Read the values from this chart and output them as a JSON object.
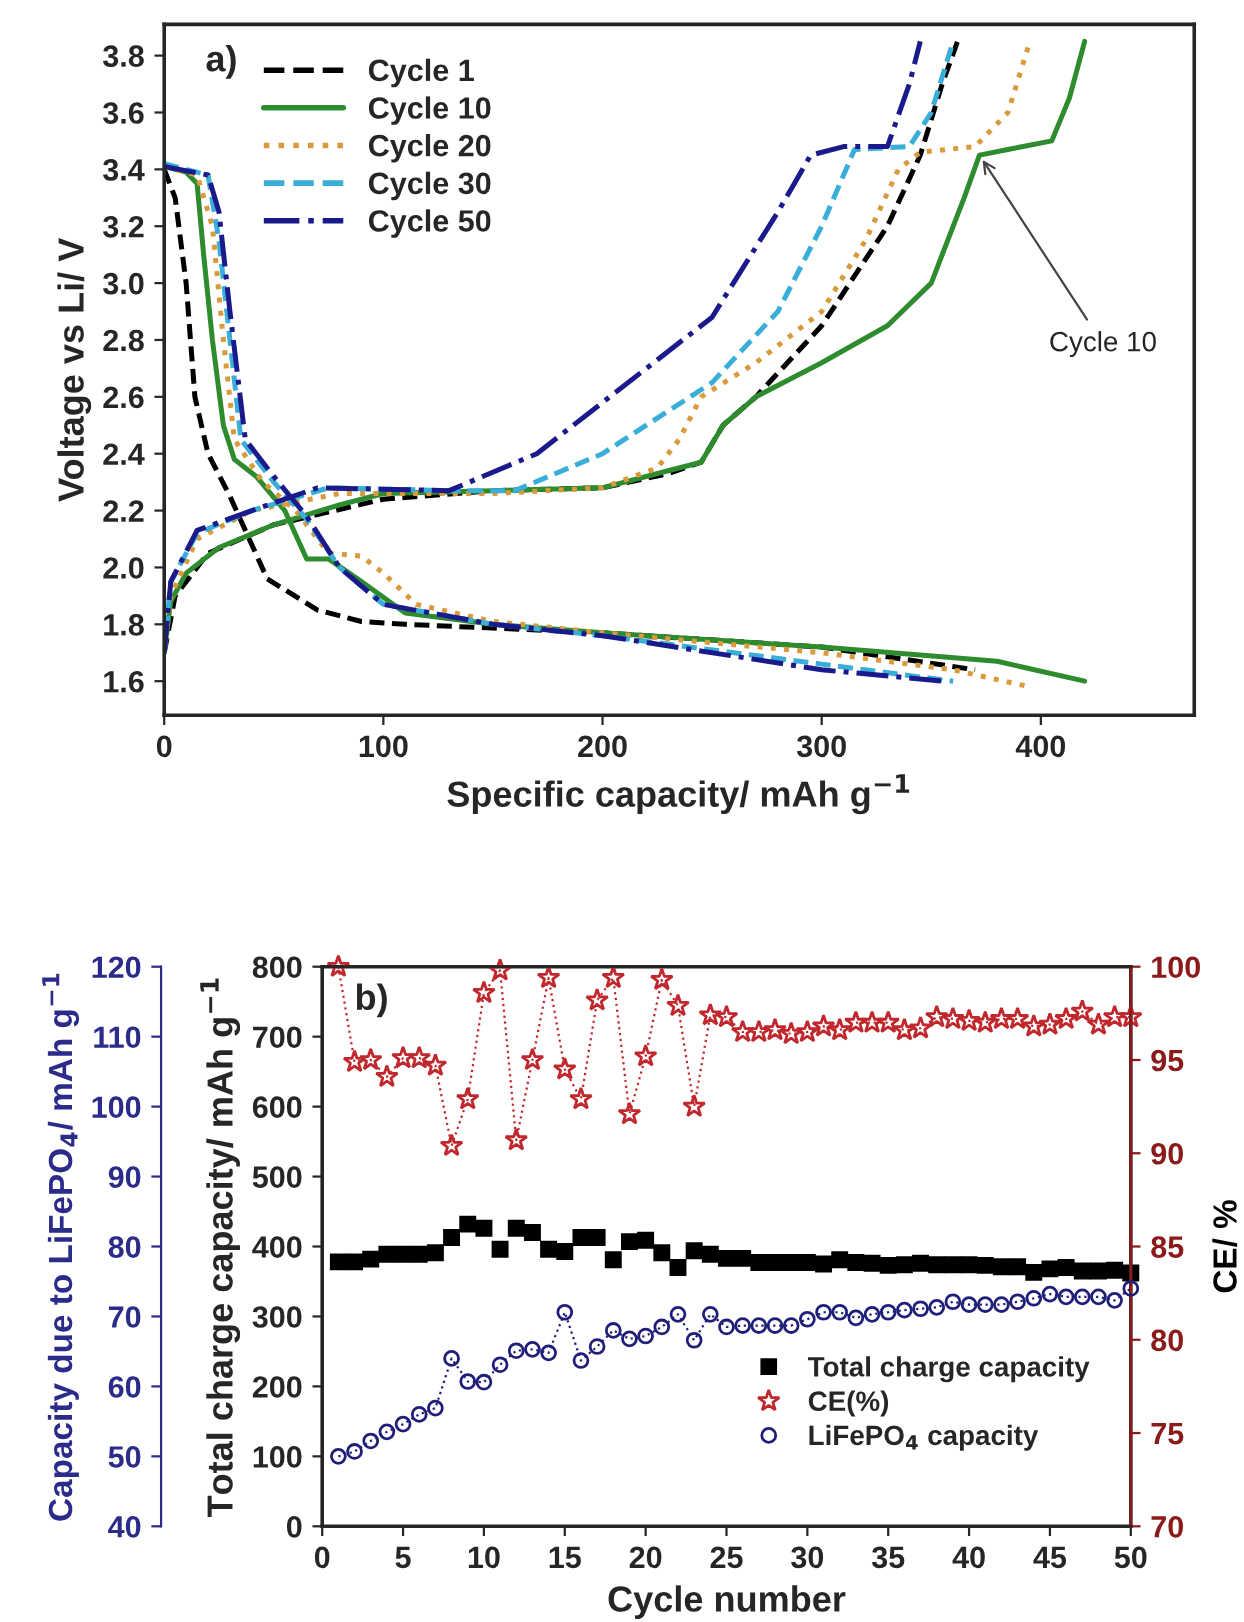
{
  "chart_data": [
    {
      "type": "line",
      "xlabel": "Specific capacity/ mAh g$^{−1}$",
      "ylabel": "Voltage vs Li/ V",
      "xlim": [
        0,
        470
      ],
      "xticks": [
        0,
        100,
        200,
        300,
        400
      ],
      "ylim": [
        1.48,
        3.91
      ],
      "yticks": [
        1.6,
        1.8,
        {
          "value": 2,
          "label": "2.0"
        },
        2.2,
        2.4,
        2.6,
        2.8,
        {
          "value": 3,
          "label": "3.0"
        },
        3.2,
        3.4,
        3.6,
        3.8
      ],
      "legend": "top left",
      "grid": false,
      "annotations": [
        "a)",
        {
          "text": "Cycle 10",
          "x": 372,
          "y": 3.45
        }
      ],
      "series": [
        {
          "name": "Cycle 1",
          "color": "#000000",
          "line_style": "dashed",
          "x": [
            0,
            5,
            10,
            14,
            20,
            30,
            47,
            70,
            90,
            110,
            200,
            300,
            370
          ],
          "values": [
            3.4,
            3.3,
            3.0,
            2.6,
            2.4,
            2.25,
            1.96,
            1.85,
            1.81,
            1.8,
            1.77,
            1.72,
            1.64
          ]
        },
        {
          "color": "#000000",
          "line_style": "dashed",
          "x": [
            0,
            5,
            20,
            50,
            100,
            150,
            200,
            230,
            245,
            255,
            270,
            300,
            330,
            345,
            355,
            362
          ],
          "values": [
            1.7,
            1.9,
            2.05,
            2.15,
            2.24,
            2.27,
            2.28,
            2.33,
            2.37,
            2.5,
            2.6,
            2.85,
            3.2,
            3.45,
            3.7,
            3.85
          ]
        },
        {
          "name": "Cycle 10",
          "color": "#2e8b2e",
          "line_style": "solid",
          "x": [
            0,
            10,
            15,
            18,
            22,
            27,
            32,
            42,
            55,
            65,
            75,
            90,
            110,
            150,
            200,
            300,
            380,
            420
          ],
          "values": [
            3.41,
            3.39,
            3.35,
            3.1,
            2.8,
            2.5,
            2.38,
            2.32,
            2.2,
            2.03,
            2.03,
            1.95,
            1.84,
            1.8,
            1.77,
            1.72,
            1.67,
            1.6
          ]
        },
        {
          "color": "#2e8b2e",
          "line_style": "solid",
          "x": [
            0,
            3,
            10,
            25,
            50,
            80,
            100,
            150,
            200,
            230,
            245,
            255,
            270,
            300,
            330,
            350,
            365,
            372,
            385,
            405,
            413,
            420
          ],
          "values": [
            1.7,
            1.88,
            1.98,
            2.07,
            2.15,
            2.22,
            2.26,
            2.27,
            2.28,
            2.34,
            2.37,
            2.5,
            2.6,
            2.72,
            2.85,
            3.0,
            3.3,
            3.45,
            3.47,
            3.5,
            3.65,
            3.85
          ]
        },
        {
          "name": "Cycle 20",
          "color": "#d99a3c",
          "line_style": "dotted",
          "x": [
            0,
            15,
            22,
            27,
            32,
            45,
            60,
            75,
            90,
            100,
            115,
            150,
            200,
            300,
            360,
            395
          ],
          "values": [
            3.41,
            3.38,
            3.2,
            2.8,
            2.45,
            2.3,
            2.2,
            2.05,
            2.04,
            1.98,
            1.87,
            1.81,
            1.77,
            1.7,
            1.64,
            1.58
          ]
        },
        {
          "color": "#d99a3c",
          "line_style": "dotted",
          "x": [
            0,
            3,
            15,
            40,
            80,
            150,
            200,
            225,
            235,
            245,
            270,
            300,
            320,
            335,
            345,
            370,
            385,
            395
          ],
          "values": [
            1.7,
            1.9,
            2.1,
            2.2,
            2.26,
            2.26,
            2.28,
            2.35,
            2.45,
            2.6,
            2.72,
            2.9,
            3.15,
            3.4,
            3.46,
            3.48,
            3.6,
            3.85
          ]
        },
        {
          "name": "Cycle 30",
          "color": "#3aaed8",
          "line_style": "dashed",
          "x": [
            0,
            20,
            25,
            30,
            35,
            50,
            65,
            80,
            100,
            150,
            200,
            300,
            360
          ],
          "values": [
            3.42,
            3.38,
            3.15,
            2.8,
            2.45,
            2.3,
            2.17,
            2.0,
            1.87,
            1.8,
            1.76,
            1.66,
            1.6
          ]
        },
        {
          "color": "#3aaed8",
          "line_style": "dashed",
          "x": [
            0,
            3,
            15,
            40,
            75,
            130,
            160,
            200,
            250,
            280,
            300,
            315,
            340,
            350,
            360
          ],
          "values": [
            1.7,
            1.95,
            2.12,
            2.2,
            2.28,
            2.27,
            2.27,
            2.4,
            2.65,
            2.9,
            3.2,
            3.47,
            3.48,
            3.6,
            3.85
          ]
        },
        {
          "name": "Cycle 50",
          "color": "#1a1a8c",
          "line_style": "dashdot",
          "x": [
            0,
            20,
            25,
            30,
            37,
            50,
            65,
            80,
            100,
            150,
            200,
            300,
            355
          ],
          "values": [
            3.41,
            3.38,
            3.25,
            2.9,
            2.45,
            2.32,
            2.18,
            2.0,
            1.87,
            1.8,
            1.76,
            1.64,
            1.6
          ]
        },
        {
          "color": "#1a1a8c",
          "line_style": "dashdot",
          "x": [
            0,
            3,
            15,
            40,
            70,
            130,
            170,
            220,
            250,
            280,
            295,
            310,
            330,
            340,
            345
          ],
          "values": [
            1.7,
            1.95,
            2.13,
            2.2,
            2.28,
            2.27,
            2.4,
            2.7,
            2.88,
            3.25,
            3.45,
            3.48,
            3.48,
            3.7,
            3.85
          ]
        }
      ]
    },
    {
      "type": "scatter",
      "xlabel": "Cycle number",
      "ylabel": "Total charge capacity/ mAh g$^{−1}$",
      "y2label": "CE/ %",
      "y3label": "Capacity due to LiFePO$_{4}$/ mAh g$^{−1}$",
      "xlim": [
        0,
        50
      ],
      "xticks": [
        0,
        5,
        10,
        15,
        20,
        25,
        30,
        35,
        40,
        45,
        50
      ],
      "ylim": [
        0,
        800
      ],
      "yticks": [
        0,
        100,
        200,
        300,
        400,
        500,
        600,
        700,
        800
      ],
      "y2lim": [
        70,
        100
      ],
      "y2ticks": [
        70,
        75,
        80,
        85,
        90,
        95,
        100
      ],
      "y3lim": [
        40,
        120
      ],
      "y3ticks": [
        40,
        50,
        60,
        70,
        80,
        90,
        100,
        110,
        120
      ],
      "legend": "bottom right",
      "grid": false,
      "annotations": [
        "b)"
      ],
      "x": [
        1,
        2,
        3,
        4,
        5,
        6,
        7,
        8,
        9,
        10,
        11,
        12,
        13,
        14,
        15,
        16,
        17,
        18,
        19,
        20,
        21,
        22,
        23,
        24,
        25,
        26,
        27,
        28,
        29,
        30,
        31,
        32,
        33,
        34,
        35,
        36,
        37,
        38,
        39,
        40,
        41,
        42,
        43,
        44,
        45,
        46,
        47,
        48,
        49,
        50
      ],
      "series": [
        {
          "name": "Total charge capacity",
          "color": "#000000",
          "marker": "square",
          "line_style": "none",
          "axis": "y",
          "values": [
            378,
            378,
            382,
            389,
            389,
            389,
            391,
            413,
            432,
            426,
            396,
            426,
            420,
            396,
            393,
            413,
            413,
            381,
            407,
            409,
            391,
            370,
            394,
            389,
            383,
            383,
            377,
            377,
            377,
            377,
            375,
            381,
            377,
            376,
            373,
            374,
            376,
            374,
            374,
            374,
            373,
            371,
            371,
            363,
            368,
            370,
            365,
            365,
            366,
            362
          ]
        },
        {
          "name": "CE(%)",
          "type": "line",
          "color": "#c0282d",
          "marker": "star",
          "line_style": "dotted",
          "axis": "y2",
          "values": [
            100,
            94.9,
            95.0,
            94.1,
            95.1,
            95.1,
            94.7,
            90.4,
            92.9,
            98.6,
            99.8,
            90.7,
            95.0,
            99.4,
            94.5,
            92.9,
            98.2,
            99.4,
            92.1,
            95.2,
            99.3,
            97.9,
            92.5,
            97.4,
            97.3,
            96.5,
            96.5,
            96.6,
            96.4,
            96.5,
            96.8,
            96.6,
            97.0,
            97.0,
            97.0,
            96.6,
            96.7,
            97.3,
            97.2,
            97.1,
            97.0,
            97.2,
            97.2,
            96.8,
            96.9,
            97.2,
            97.6,
            96.9,
            97.3,
            97.3
          ]
        },
        {
          "name": "LiFePO$_{4}$ capacity",
          "type": "line",
          "color": "#1f1f7a",
          "marker": "circle",
          "line_style": "dotted",
          "axis": "y3",
          "values": [
            50,
            50.7,
            52.2,
            53.5,
            54.6,
            56.0,
            56.9,
            64.0,
            60.7,
            60.6,
            63.1,
            65.1,
            65.3,
            64.8,
            70.6,
            63.7,
            65.7,
            68.0,
            66.8,
            67.2,
            68.5,
            70.3,
            66.6,
            70.3,
            68.5,
            68.7,
            68.7,
            68.7,
            68.7,
            69.6,
            70.6,
            70.6,
            69.8,
            70.3,
            70.6,
            70.9,
            71.1,
            71.3,
            72.1,
            71.7,
            71.7,
            71.7,
            72.1,
            72.6,
            73.2,
            72.8,
            72.8,
            72.8,
            72.3,
            74.0
          ]
        }
      ]
    }
  ]
}
